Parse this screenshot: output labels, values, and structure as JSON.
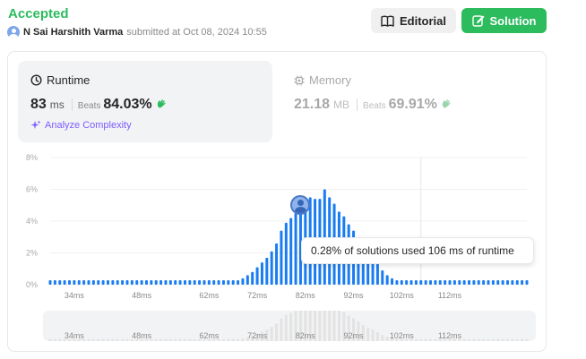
{
  "submission": {
    "status": "Accepted",
    "username": "N Sai Harshith Varma",
    "submitted_at": "submitted at Oct 08, 2024 10:55"
  },
  "actions": {
    "editorial_label": "Editorial",
    "solution_label": "Solution"
  },
  "runtime": {
    "title": "Runtime",
    "value": "83",
    "unit": "ms",
    "beats_label": "Beats",
    "beats_value": "84.03%",
    "analyze_label": "Analyze Complexity"
  },
  "memory": {
    "title": "Memory",
    "value": "21.18",
    "unit": "MB",
    "beats_label": "Beats",
    "beats_value": "69.91%"
  },
  "tooltip": {
    "text": "0.28% of solutions used 106 ms of runtime"
  },
  "colors": {
    "accent_green": "#2cbb5d",
    "bar_blue": "#1a7cf1",
    "analyze_purple": "#7c5cff"
  },
  "icons": {
    "editorial": "book-icon",
    "solution": "edit-icon",
    "runtime": "clock-icon",
    "memory": "chip-icon",
    "analyze": "sparkle-icon",
    "beats": "clapping-hands-icon"
  },
  "chart_data": {
    "type": "bar",
    "ylabel": "",
    "xlabel": "",
    "y_ticks": [
      "8%",
      "6%",
      "4%",
      "2%",
      "0%"
    ],
    "ylim": [
      0,
      8
    ],
    "x_ticks": [
      {
        "label": "34ms",
        "value": 34
      },
      {
        "label": "48ms",
        "value": 48
      },
      {
        "label": "62ms",
        "value": 62
      },
      {
        "label": "72ms",
        "value": 72
      },
      {
        "label": "82ms",
        "value": 82
      },
      {
        "label": "92ms",
        "value": 92
      },
      {
        "label": "102ms",
        "value": 102
      },
      {
        "label": "112ms",
        "value": 112
      }
    ],
    "brush_ticks": [
      "34ms",
      "48ms",
      "62ms",
      "72ms",
      "82ms",
      "92ms",
      "102ms",
      "112ms"
    ],
    "highlight_value": 106,
    "user_value": 83,
    "values": [
      0.28,
      0.28,
      0.28,
      0.28,
      0.28,
      0.28,
      0.28,
      0.28,
      0.28,
      0.28,
      0.28,
      0.28,
      0.28,
      0.28,
      0.28,
      0.28,
      0.28,
      0.28,
      0.28,
      0.28,
      0.28,
      0.28,
      0.28,
      0.28,
      0.28,
      0.28,
      0.28,
      0.28,
      0.28,
      0.28,
      0.28,
      0.28,
      0.28,
      0.28,
      0.28,
      0.28,
      0.28,
      0.28,
      0.28,
      0.28,
      0.4,
      0.6,
      0.8,
      1.1,
      1.4,
      1.7,
      2.1,
      2.6,
      3.4,
      3.9,
      4.2,
      4.5,
      4.9,
      5.3,
      5.5,
      5.4,
      5.4,
      6.0,
      5.5,
      5.1,
      4.6,
      4.3,
      3.8,
      3.4,
      2.9,
      2.4,
      2.0,
      1.7,
      1.3,
      0.9,
      0.6,
      0.4,
      0.28,
      0.28,
      0.28,
      0.28,
      0.28,
      0.28,
      0.28,
      0.28,
      0.28,
      0.28,
      0.28,
      0.28,
      0.28,
      0.28,
      0.28,
      0.28,
      0.28,
      0.28,
      0.28,
      0.28,
      0.28,
      0.28,
      0.28,
      0.28,
      0.28,
      0.28,
      0.28,
      0.28
    ]
  }
}
